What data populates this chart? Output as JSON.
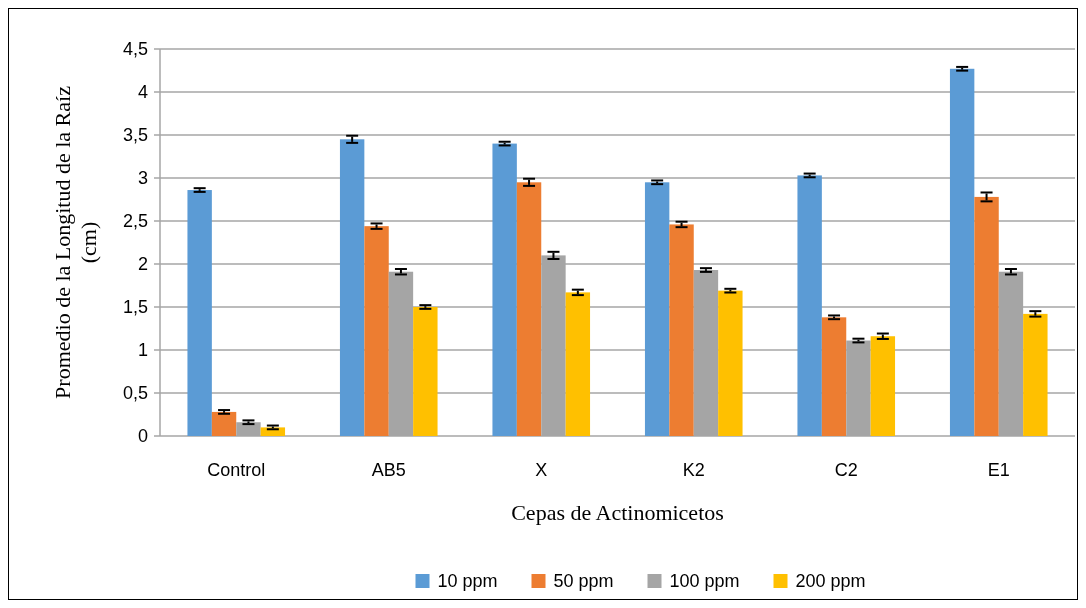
{
  "chart_data": {
    "type": "bar",
    "xlabel": "Cepas de Actinomicetos",
    "ylabel": "Promedio de la Longitud de la Raíz (cm)",
    "categories": [
      "Control",
      "AB5",
      "X",
      "K2",
      "C2",
      "E1"
    ],
    "series": [
      {
        "name": "10 ppm",
        "color": "#5b9bd5",
        "values": [
          2.86,
          3.45,
          3.4,
          2.95,
          3.03,
          4.27
        ],
        "errors": [
          0.01,
          0.03,
          0.01,
          0.01,
          0.01,
          0.01
        ]
      },
      {
        "name": "50 ppm",
        "color": "#ed7d31",
        "values": [
          0.28,
          2.44,
          2.95,
          2.46,
          1.38,
          2.78
        ],
        "errors": [
          0.01,
          0.02,
          0.03,
          0.02,
          0.01,
          0.04
        ]
      },
      {
        "name": "100 ppm",
        "color": "#a5a5a5",
        "values": [
          0.16,
          1.91,
          2.1,
          1.93,
          1.11,
          1.91
        ],
        "errors": [
          0.01,
          0.02,
          0.03,
          0.01,
          0.01,
          0.02
        ]
      },
      {
        "name": "200 ppm",
        "color": "#ffc000",
        "values": [
          0.1,
          1.5,
          1.67,
          1.69,
          1.16,
          1.42
        ],
        "errors": [
          0.01,
          0.01,
          0.02,
          0.01,
          0.02,
          0.02
        ]
      }
    ],
    "ylim": [
      0,
      4.5
    ],
    "yticks": [
      0,
      {
        "value": 0.5,
        "label": "0,5"
      },
      1,
      {
        "value": 1.5,
        "label": "1,5"
      },
      2,
      {
        "value": 2.5,
        "label": "2,5"
      },
      3,
      {
        "value": 3.5,
        "label": "3,5"
      },
      4,
      {
        "value": 4.5,
        "label": "4,5"
      }
    ],
    "grid": "y",
    "legend": "bottom"
  }
}
